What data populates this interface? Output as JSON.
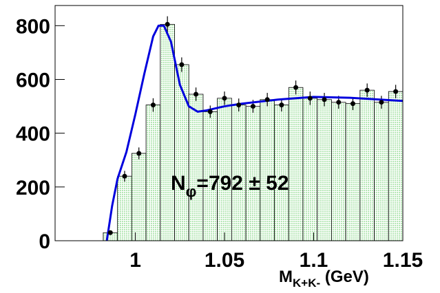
{
  "chart_data": {
    "type": "histogram",
    "bins": [
      0.982,
      0.99,
      0.998,
      1.006,
      1.014,
      1.022,
      1.03,
      1.038,
      1.046,
      1.054,
      1.062,
      1.07,
      1.078,
      1.086,
      1.094,
      1.102,
      1.11,
      1.118,
      1.126,
      1.134,
      1.142,
      1.15
    ],
    "values": [
      30,
      240,
      325,
      505,
      805,
      655,
      545,
      480,
      530,
      505,
      500,
      525,
      505,
      570,
      530,
      525,
      515,
      510,
      560,
      515,
      555
    ],
    "errors": [
      8,
      20,
      22,
      25,
      30,
      27,
      25,
      23,
      25,
      24,
      24,
      25,
      24,
      26,
      25,
      25,
      24,
      24,
      25,
      24,
      25
    ],
    "color": "#c8f0c8",
    "point_color": "#000000",
    "fit": {
      "color": "#0000dd",
      "x": [
        0.984,
        0.987,
        0.99,
        0.995,
        1.0,
        1.005,
        1.01,
        1.013,
        1.016,
        1.02,
        1.025,
        1.03,
        1.035,
        1.04,
        1.05,
        1.06,
        1.08,
        1.1,
        1.12,
        1.15
      ],
      "y": [
        0,
        130,
        230,
        330,
        470,
        620,
        760,
        800,
        800,
        740,
        580,
        500,
        480,
        485,
        500,
        510,
        525,
        535,
        532,
        520
      ]
    },
    "annotation": {
      "main": "N",
      "sub": "φ",
      "rest": "=792 ± 52"
    },
    "x_label": {
      "main": "M",
      "sub": "K+K-",
      "rest": " (GeV)"
    },
    "xlim": [
      0.955,
      1.15
    ],
    "ylim": [
      0,
      875
    ],
    "xticks": [
      1,
      1.05,
      1.1,
      1.15
    ],
    "yticks": [
      0,
      200,
      400,
      600,
      800
    ]
  }
}
